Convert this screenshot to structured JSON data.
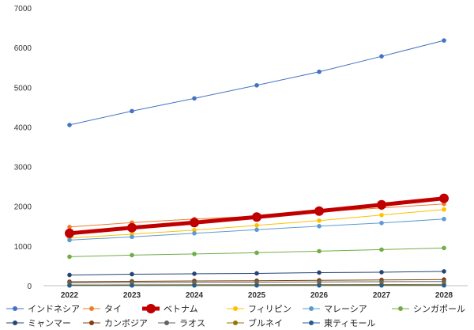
{
  "chart_data": {
    "type": "line",
    "x": [
      "2022",
      "2023",
      "2024",
      "2025",
      "2026",
      "2027",
      "2028"
    ],
    "ylim": [
      0,
      7000
    ],
    "yticks": [
      "0",
      "1000",
      "2000",
      "3000",
      "4000",
      "5000",
      "6000",
      "7000"
    ],
    "grid": false,
    "legend_position": "bottom",
    "series": [
      {
        "name": "インドネシア",
        "color": "#4472c4",
        "highlight": false,
        "values": [
          4050,
          4400,
          4720,
          5050,
          5390,
          5780,
          6180
        ]
      },
      {
        "name": "タイ",
        "color": "#ed7d31",
        "highlight": false,
        "values": [
          1480,
          1590,
          1680,
          1750,
          1860,
          1960,
          2060
        ]
      },
      {
        "name": "ベトナム",
        "color": "#c00000",
        "highlight": true,
        "values": [
          1320,
          1460,
          1590,
          1730,
          1880,
          2040,
          2200
        ]
      },
      {
        "name": "フィリピン",
        "color": "#ffc000",
        "highlight": false,
        "values": [
          1200,
          1300,
          1400,
          1520,
          1640,
          1780,
          1920
        ]
      },
      {
        "name": "マレーシア",
        "color": "#5b9bd5",
        "highlight": false,
        "values": [
          1150,
          1230,
          1320,
          1410,
          1500,
          1580,
          1680
        ]
      },
      {
        "name": "シンガポール",
        "color": "#70ad47",
        "highlight": false,
        "values": [
          730,
          770,
          800,
          830,
          870,
          910,
          950
        ]
      },
      {
        "name": "ミャンマー",
        "color": "#264478",
        "highlight": false,
        "values": [
          270,
          290,
          300,
          310,
          330,
          340,
          360
        ]
      },
      {
        "name": "カンボジア",
        "color": "#843c0c",
        "highlight": false,
        "values": [
          100,
          110,
          120,
          125,
          135,
          145,
          155
        ]
      },
      {
        "name": "ラオス",
        "color": "#636363",
        "highlight": false,
        "values": [
          75,
          80,
          85,
          90,
          95,
          100,
          105
        ]
      },
      {
        "name": "ブルネイ",
        "color": "#997300",
        "highlight": false,
        "values": [
          20,
          22,
          24,
          26,
          28,
          30,
          32
        ]
      },
      {
        "name": "東ティモール",
        "color": "#255e91",
        "highlight": false,
        "values": [
          5,
          5,
          6,
          6,
          7,
          7,
          8
        ]
      }
    ]
  }
}
